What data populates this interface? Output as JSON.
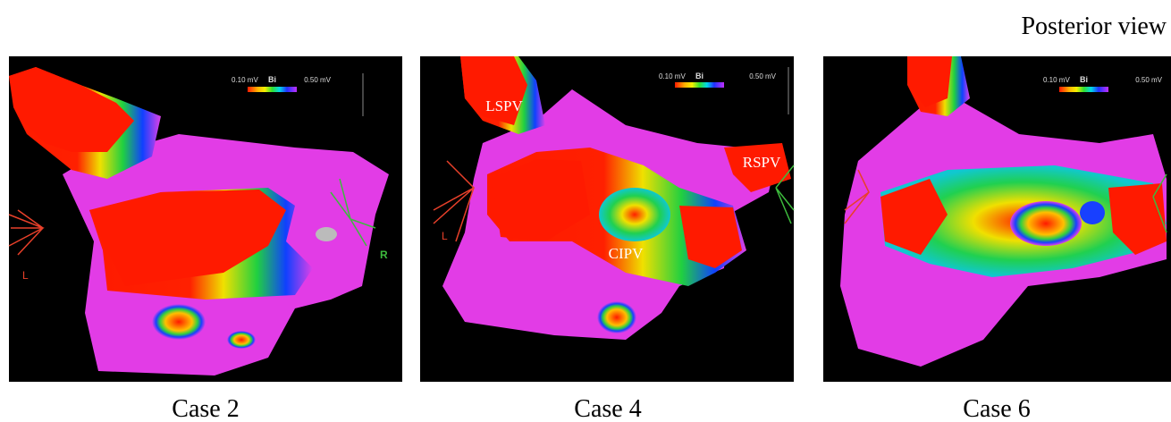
{
  "header": {
    "title": "Posterior view"
  },
  "panels": [
    {
      "caption": "Case 2",
      "scale": {
        "min_label": "0.10 mV",
        "mode": "Bi",
        "max_label": "0.50 mV"
      },
      "labels": [
        "L",
        "R"
      ]
    },
    {
      "caption": "Case 4",
      "scale": {
        "min_label": "0.10 mV",
        "mode": "Bi",
        "max_label": "0.50 mV"
      },
      "labels": [
        "L",
        "LSPV",
        "RSPV",
        "CIPV"
      ]
    },
    {
      "caption": "Case 6",
      "scale": {
        "min_label": "0.10 mV",
        "mode": "Bi",
        "max_label": "0.50 mV"
      }
    }
  ]
}
